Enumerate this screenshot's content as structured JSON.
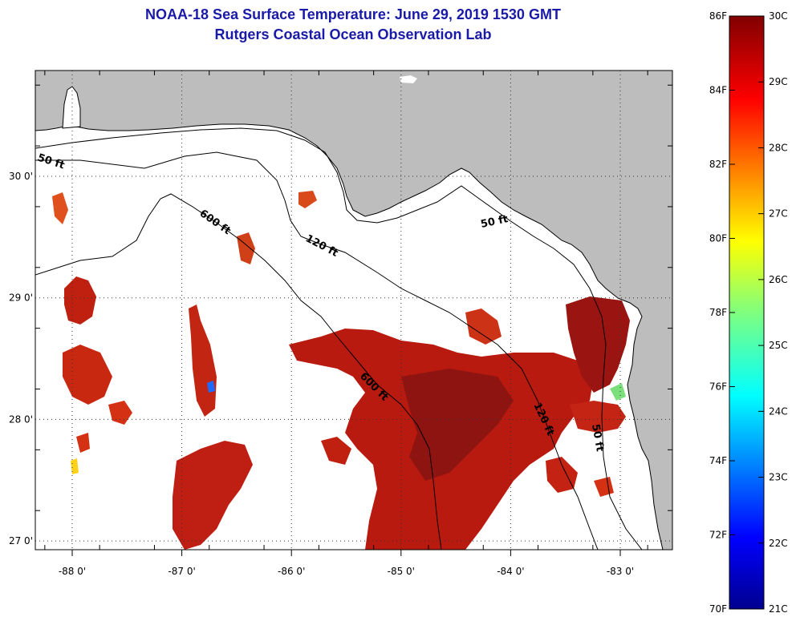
{
  "title_line1": "NOAA-18 Sea Surface Temperature:  June 29, 2019 1530 GMT",
  "title_line2": "Rutgers Coastal Ocean Observation Lab",
  "lat_labels": [
    {
      "label": "30 0'",
      "lat": 30.0
    },
    {
      "label": "29 0'",
      "lat": 29.0
    },
    {
      "label": "28 0'",
      "lat": 28.0
    },
    {
      "label": "27 0'",
      "lat": 27.0
    }
  ],
  "lon_labels": [
    {
      "label": "-88 0'",
      "lon": -88.0
    },
    {
      "label": "-87 0'",
      "lon": -87.0
    },
    {
      "label": "-86 0'",
      "lon": -86.0
    },
    {
      "label": "-85 0'",
      "lon": -85.0
    },
    {
      "label": "-84 0'",
      "lon": -84.0
    },
    {
      "label": "-83 0'",
      "lon": -83.0
    }
  ],
  "depth_contours": [
    "50 ft",
    "120 ft",
    "600 ft"
  ],
  "colorbar": {
    "fahrenheit_labels": [
      "86F",
      "84F",
      "82F",
      "80F",
      "78F",
      "76F",
      "74F",
      "72F",
      "70F"
    ],
    "celsius_labels": [
      "30C",
      "29C",
      "28C",
      "27C",
      "26C",
      "25C",
      "24C",
      "23C",
      "22C",
      "21C"
    ],
    "range_f": [
      70,
      86
    ],
    "range_c": [
      21,
      30
    ]
  },
  "colors": {
    "title": "#1a1aa8",
    "land": "#bdbdbd",
    "ocean_no_data": "#ffffff",
    "sst_warm": "#b01010",
    "sst_hot": "#8a0f0f"
  }
}
